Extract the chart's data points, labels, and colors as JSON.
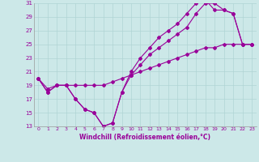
{
  "line1_x": [
    0,
    1,
    2,
    3,
    4,
    5,
    6,
    7,
    8,
    9,
    10,
    11,
    12,
    13,
    14,
    15,
    16,
    17,
    18,
    19,
    20,
    21,
    22,
    23
  ],
  "line1_y": [
    20.0,
    18.5,
    19.0,
    19.0,
    19.0,
    19.0,
    19.0,
    19.0,
    19.5,
    20.0,
    20.5,
    21.0,
    21.5,
    22.0,
    22.5,
    23.0,
    23.5,
    24.0,
    24.5,
    24.5,
    25.0,
    25.0,
    25.0,
    25.0
  ],
  "line2_x": [
    0,
    1,
    2,
    3,
    4,
    5,
    6,
    7,
    8,
    9,
    10,
    11,
    12,
    13,
    14,
    15,
    16,
    17,
    18,
    19,
    20,
    21,
    22,
    23
  ],
  "line2_y": [
    20.0,
    18.0,
    19.0,
    19.0,
    17.0,
    15.5,
    15.0,
    13.0,
    13.5,
    18.0,
    20.5,
    22.0,
    23.5,
    24.5,
    25.5,
    26.5,
    27.5,
    29.5,
    31.0,
    31.0,
    30.0,
    29.5,
    25.0,
    25.0
  ],
  "line3_x": [
    0,
    1,
    2,
    3,
    4,
    5,
    6,
    7,
    8,
    9,
    10,
    11,
    12,
    13,
    14,
    15,
    16,
    17,
    18,
    19,
    20,
    21,
    22,
    23
  ],
  "line3_y": [
    20.0,
    18.0,
    19.0,
    19.0,
    17.0,
    15.5,
    15.0,
    13.0,
    13.5,
    18.0,
    21.0,
    23.0,
    24.5,
    26.0,
    27.0,
    28.0,
    29.5,
    31.0,
    31.5,
    30.0,
    30.0,
    29.5,
    25.0,
    25.0
  ],
  "color": "#990099",
  "bg_color": "#cce8e8",
  "grid_color": "#b0d4d4",
  "xlabel": "Windchill (Refroidissement éolien,°C)",
  "xlim_min": -0.5,
  "xlim_max": 23.5,
  "ylim_min": 13,
  "ylim_max": 31,
  "yticks": [
    13,
    15,
    17,
    19,
    21,
    23,
    25,
    27,
    29,
    31
  ],
  "xticks": [
    0,
    1,
    2,
    3,
    4,
    5,
    6,
    7,
    8,
    9,
    10,
    11,
    12,
    13,
    14,
    15,
    16,
    17,
    18,
    19,
    20,
    21,
    22,
    23
  ]
}
